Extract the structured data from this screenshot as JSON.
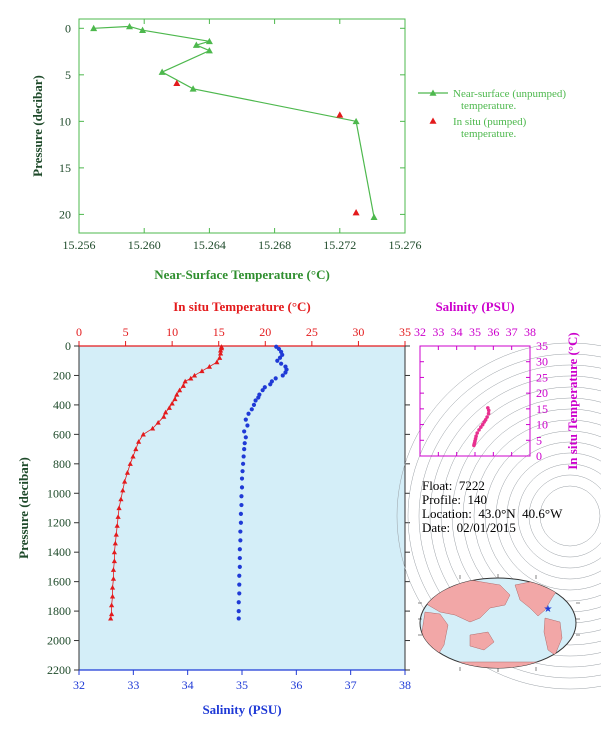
{
  "colors": {
    "green": "#4db84d",
    "axis_green": "#2f8f2f",
    "red": "#e31a1c",
    "blue": "#1f3ad6",
    "magenta": "#cc00cc",
    "pink": "#e8308f",
    "panel_bg": "#d4eef8",
    "dark_text": "#1e4a2a"
  },
  "chart_data": [
    {
      "type": "line",
      "id": "near_surface",
      "xlabel": "Near-Surface Temperature (°C)",
      "ylabel": "Pressure (decibar)",
      "xlim": [
        15.256,
        15.276
      ],
      "ylim": [
        22,
        -1
      ],
      "xticks": [
        "15.256",
        "15.260",
        "15.264",
        "15.268",
        "15.272",
        "15.276"
      ],
      "xtick_values": [
        15.256,
        15.26,
        15.264,
        15.268,
        15.272,
        15.276
      ],
      "yticks": [
        "0",
        "5",
        "10",
        "15",
        "20"
      ],
      "ytick_values": [
        0,
        5,
        10,
        15,
        20
      ],
      "series": [
        {
          "name": "Near-surface (unpumped) temperature.",
          "marker": "triangle",
          "line": true,
          "points": [
            [
              15.2569,
              0.0
            ],
            [
              15.2591,
              -0.2
            ],
            [
              15.2599,
              0.2
            ],
            [
              15.264,
              1.4
            ],
            [
              15.2632,
              1.8
            ],
            [
              15.264,
              2.4
            ],
            [
              15.2611,
              4.7
            ],
            [
              15.263,
              6.5
            ],
            [
              15.273,
              10.0
            ],
            [
              15.2741,
              20.3
            ]
          ]
        },
        {
          "name": "In situ (pumped) temperature.",
          "marker": "triangle",
          "line": false,
          "points": [
            [
              15.262,
              5.9
            ],
            [
              15.272,
              9.3
            ],
            [
              15.273,
              19.8
            ]
          ]
        }
      ]
    },
    {
      "type": "scatter",
      "id": "profile",
      "ylabel": "Pressure (decibar)",
      "top_xlabel": "In situ Temperature (°C)",
      "bottom_xlabel": "Salinity (PSU)",
      "temp_lim": [
        0,
        35
      ],
      "sal_lim": [
        32,
        38
      ],
      "ylim": [
        2200,
        0
      ],
      "temp_ticks": [
        "0",
        "5",
        "10",
        "15",
        "20",
        "25",
        "30",
        "35"
      ],
      "temp_tick_values": [
        0,
        5,
        10,
        15,
        20,
        25,
        30,
        35
      ],
      "sal_ticks": [
        "32",
        "33",
        "34",
        "35",
        "36",
        "37",
        "38"
      ],
      "sal_tick_values": [
        32,
        33,
        34,
        35,
        36,
        37,
        38
      ],
      "yticks": [
        "0",
        "200",
        "400",
        "600",
        "800",
        "1000",
        "1200",
        "1400",
        "1600",
        "1800",
        "2000",
        "2200"
      ],
      "ytick_values": [
        0,
        200,
        400,
        600,
        800,
        1000,
        1200,
        1400,
        1600,
        1800,
        2000,
        2200
      ],
      "temperature": [
        [
          15.3,
          5
        ],
        [
          15.3,
          15
        ],
        [
          15.2,
          30
        ],
        [
          15.2,
          50
        ],
        [
          15.1,
          80
        ],
        [
          14.8,
          110
        ],
        [
          14.0,
          140
        ],
        [
          13.2,
          170
        ],
        [
          12.4,
          200
        ],
        [
          12.0,
          220
        ],
        [
          11.4,
          240
        ],
        [
          11.2,
          270
        ],
        [
          10.8,
          300
        ],
        [
          10.5,
          330
        ],
        [
          10.3,
          360
        ],
        [
          10.0,
          390
        ],
        [
          9.7,
          420
        ],
        [
          9.3,
          450
        ],
        [
          9.1,
          480
        ],
        [
          8.5,
          520
        ],
        [
          7.9,
          560
        ],
        [
          6.9,
          600
        ],
        [
          6.4,
          650
        ],
        [
          6.1,
          700
        ],
        [
          5.8,
          750
        ],
        [
          5.5,
          800
        ],
        [
          5.2,
          860
        ],
        [
          4.9,
          920
        ],
        [
          4.7,
          980
        ],
        [
          4.5,
          1040
        ],
        [
          4.3,
          1100
        ],
        [
          4.2,
          1160
        ],
        [
          4.1,
          1220
        ],
        [
          4.0,
          1280
        ],
        [
          3.9,
          1340
        ],
        [
          3.8,
          1400
        ],
        [
          3.8,
          1460
        ],
        [
          3.7,
          1520
        ],
        [
          3.7,
          1580
        ],
        [
          3.6,
          1640
        ],
        [
          3.6,
          1700
        ],
        [
          3.5,
          1760
        ],
        [
          3.5,
          1820
        ],
        [
          3.4,
          1850
        ]
      ],
      "salinity": [
        [
          35.63,
          5
        ],
        [
          35.68,
          20
        ],
        [
          35.72,
          40
        ],
        [
          35.74,
          60
        ],
        [
          35.7,
          80
        ],
        [
          35.65,
          100
        ],
        [
          35.72,
          120
        ],
        [
          35.8,
          140
        ],
        [
          35.82,
          160
        ],
        [
          35.8,
          180
        ],
        [
          35.75,
          200
        ],
        [
          35.62,
          220
        ],
        [
          35.55,
          240
        ],
        [
          35.52,
          260
        ],
        [
          35.42,
          280
        ],
        [
          35.38,
          300
        ],
        [
          35.32,
          330
        ],
        [
          35.3,
          350
        ],
        [
          35.25,
          370
        ],
        [
          35.22,
          400
        ],
        [
          35.18,
          430
        ],
        [
          35.12,
          460
        ],
        [
          35.07,
          500
        ],
        [
          35.1,
          540
        ],
        [
          35.04,
          580
        ],
        [
          35.07,
          620
        ],
        [
          35.05,
          660
        ],
        [
          35.04,
          700
        ],
        [
          35.03,
          750
        ],
        [
          35.02,
          800
        ],
        [
          35.01,
          850
        ],
        [
          35.0,
          900
        ],
        [
          35.0,
          960
        ],
        [
          34.99,
          1020
        ],
        [
          34.99,
          1080
        ],
        [
          34.98,
          1140
        ],
        [
          34.98,
          1200
        ],
        [
          34.97,
          1260
        ],
        [
          34.97,
          1320
        ],
        [
          34.96,
          1380
        ],
        [
          34.96,
          1440
        ],
        [
          34.96,
          1500
        ],
        [
          34.95,
          1560
        ],
        [
          34.95,
          1620
        ],
        [
          34.95,
          1680
        ],
        [
          34.94,
          1740
        ],
        [
          34.94,
          1800
        ],
        [
          34.94,
          1850
        ]
      ]
    },
    {
      "type": "scatter",
      "id": "ts_diagram",
      "top_xlabel": "Salinity (PSU)",
      "right_ylabel": "In situ Temperature (°C)",
      "sal_lim": [
        32,
        38
      ],
      "temp_lim": [
        0,
        35
      ],
      "sal_ticks": [
        "32",
        "33",
        "34",
        "35",
        "36",
        "37",
        "38"
      ],
      "sal_tick_values": [
        32,
        33,
        34,
        35,
        36,
        37,
        38
      ],
      "temp_ticks": [
        "0",
        "5",
        "10",
        "15",
        "20",
        "25",
        "30",
        "35"
      ],
      "temp_tick_values": [
        0,
        5,
        10,
        15,
        20,
        25,
        30,
        35
      ],
      "points": [
        [
          35.7,
          15.3
        ],
        [
          35.75,
          14.5
        ],
        [
          35.74,
          13.5
        ],
        [
          35.66,
          12.4
        ],
        [
          35.58,
          11.5
        ],
        [
          35.5,
          10.8
        ],
        [
          35.42,
          10.0
        ],
        [
          35.32,
          9.2
        ],
        [
          35.22,
          8.3
        ],
        [
          35.12,
          7.3
        ],
        [
          35.06,
          6.3
        ],
        [
          35.03,
          5.5
        ],
        [
          35.0,
          4.8
        ],
        [
          34.98,
          4.2
        ],
        [
          34.96,
          3.8
        ],
        [
          34.94,
          3.4
        ]
      ]
    }
  ],
  "float_info": {
    "float": "Float:  7222",
    "profile": "Profile:  140",
    "location": "Location:  43.0°N  40.6°W",
    "date": "Date:  02/01/2015"
  },
  "map": {
    "marker_lat": 43.0,
    "marker_lon": -40.6
  }
}
